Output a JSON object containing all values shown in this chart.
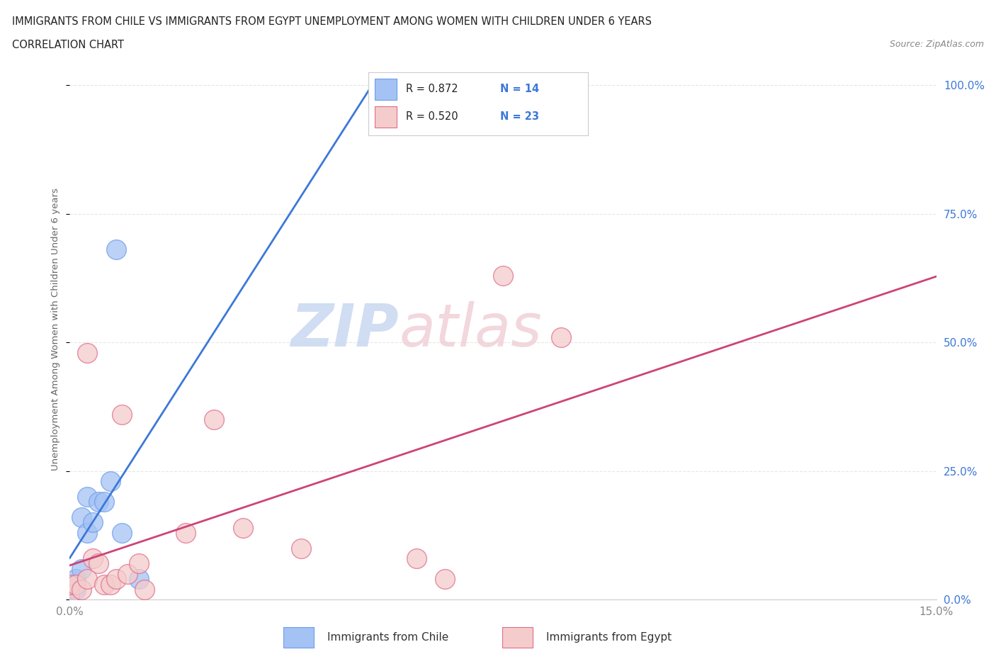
{
  "title_line1": "IMMIGRANTS FROM CHILE VS IMMIGRANTS FROM EGYPT UNEMPLOYMENT AMONG WOMEN WITH CHILDREN UNDER 6 YEARS",
  "title_line2": "CORRELATION CHART",
  "source_text": "Source: ZipAtlas.com",
  "ylabel": "Unemployment Among Women with Children Under 6 years",
  "xlim": [
    0.0,
    0.15
  ],
  "ylim": [
    0.0,
    1.05
  ],
  "yticks": [
    0.0,
    0.25,
    0.5,
    0.75,
    1.0
  ],
  "ytick_labels": [
    "0.0%",
    "25.0%",
    "50.0%",
    "75.0%",
    "100.0%"
  ],
  "xtick_labels_show": [
    "0.0%",
    "15.0%"
  ],
  "watermark_zip": "ZIP",
  "watermark_atlas": "atlas",
  "chile_color": "#a4c2f4",
  "egypt_color": "#f4cccc",
  "chile_edge_color": "#6d9eeb",
  "egypt_edge_color": "#e06c8a",
  "chile_line_color": "#3c78d8",
  "egypt_line_color": "#cc4477",
  "chile_R": 0.872,
  "chile_N": 14,
  "egypt_R": 0.52,
  "egypt_N": 23,
  "chile_points_x": [
    0.0,
    0.001,
    0.001,
    0.002,
    0.002,
    0.003,
    0.003,
    0.004,
    0.005,
    0.006,
    0.007,
    0.008,
    0.009,
    0.012
  ],
  "chile_points_y": [
    0.02,
    0.02,
    0.04,
    0.06,
    0.16,
    0.13,
    0.2,
    0.15,
    0.19,
    0.19,
    0.23,
    0.68,
    0.13,
    0.04
  ],
  "egypt_points_x": [
    0.0,
    0.0,
    0.001,
    0.002,
    0.003,
    0.003,
    0.004,
    0.005,
    0.006,
    0.007,
    0.008,
    0.009,
    0.01,
    0.012,
    0.013,
    0.02,
    0.025,
    0.03,
    0.04,
    0.06,
    0.065,
    0.075,
    0.085
  ],
  "egypt_points_y": [
    0.01,
    0.03,
    0.03,
    0.02,
    0.04,
    0.48,
    0.08,
    0.07,
    0.03,
    0.03,
    0.04,
    0.36,
    0.05,
    0.07,
    0.02,
    0.13,
    0.35,
    0.14,
    0.1,
    0.08,
    0.04,
    0.63,
    0.51
  ],
  "chile_line_x": [
    0.0,
    0.012
  ],
  "egypt_line_x": [
    0.0,
    0.15
  ],
  "background_color": "#ffffff",
  "grid_color": "#e0e0e0",
  "legend_border_color": "#cccccc",
  "right_tick_color": "#3c78d8",
  "bottom_tick_color": "#888888"
}
